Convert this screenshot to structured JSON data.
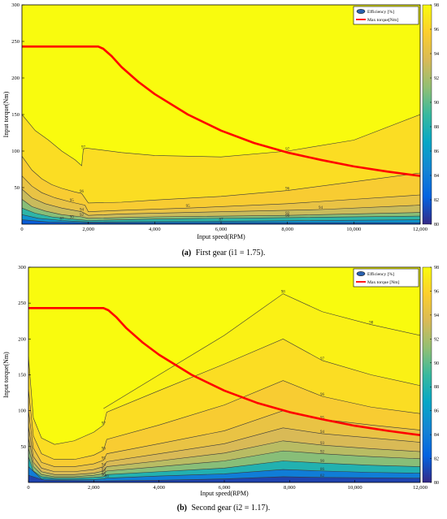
{
  "colorbar": {
    "stops": [
      "#352a87",
      "#0363e1",
      "#1485d4",
      "#06a7c6",
      "#38b99e",
      "#92bf73",
      "#d9ba56",
      "#fcce2e",
      "#f9fb0e"
    ],
    "ticks": [
      "80",
      "82",
      "84",
      "86",
      "88",
      "90",
      "92",
      "94",
      "96",
      "98"
    ]
  },
  "colors": {
    "max_torque": "#ff0000",
    "contour_line": "#3a3a3a"
  },
  "chart_data": [
    {
      "type": "contour",
      "panel_letter": "(a)",
      "caption": "First gear (i1 = 1.75).",
      "xlabel": "Input speed(RPM)",
      "ylabel": "Input torque(Nm)",
      "xlim": [
        0,
        12000
      ],
      "ylim": [
        0,
        300
      ],
      "x_ticks": [
        "0",
        "2,000",
        "4,000",
        "6,000",
        "8,000",
        "10,000",
        "12,000"
      ],
      "y_ticks": [
        "50",
        "100",
        "150",
        "200",
        "250",
        "300"
      ],
      "zlim": [
        80,
        98
      ],
      "legend": [
        "Efficiency [%]",
        "Max torque[Nm]"
      ],
      "legend_position": "top-right",
      "max_torque_curve": {
        "speed": [
          0,
          2000,
          2300,
          2450,
          2700,
          3000,
          3500,
          4000,
          5000,
          6000,
          7000,
          8000,
          9000,
          10000,
          11000,
          12000
        ],
        "torque": [
          243,
          243,
          243,
          240,
          230,
          215,
          195,
          178,
          150,
          128,
          111,
          98,
          88,
          79,
          72,
          66
        ]
      },
      "contours": [
        {
          "level": 97,
          "speed": [
            0,
            400,
            800,
            1200,
            1600,
            1800,
            1850,
            1950,
            2300,
            3000,
            4000,
            6000,
            8000,
            10000,
            12000
          ],
          "torque": [
            150,
            128,
            115,
            100,
            88,
            80,
            103,
            104,
            102,
            98,
            94,
            92,
            100,
            115,
            150
          ]
        },
        {
          "level": 96,
          "speed": [
            0,
            300,
            600,
            900,
            1200,
            1600,
            1800,
            2000,
            3000,
            4000,
            6000,
            8000,
            10000,
            12000
          ],
          "torque": [
            93,
            74,
            62,
            54,
            49,
            44,
            42,
            29,
            30,
            33,
            38,
            46,
            58,
            70
          ]
        },
        {
          "level": 95,
          "speed": [
            0,
            300,
            600,
            1000,
            1500,
            1900,
            2000,
            3000,
            5000,
            8000,
            12000
          ],
          "torque": [
            66,
            52,
            43,
            36,
            30,
            26,
            17,
            19,
            22,
            28,
            40
          ]
        },
        {
          "level": 94,
          "speed": [
            0,
            300,
            700,
            1200,
            1800,
            2000,
            3000,
            6000,
            9000,
            12000
          ],
          "torque": [
            48,
            36,
            28,
            22,
            17,
            12,
            14,
            17,
            20,
            26
          ]
        },
        {
          "level": 92,
          "speed": [
            0,
            300,
            700,
            1200,
            1800,
            2000,
            4000,
            8000,
            12000
          ],
          "torque": [
            34,
            24,
            18,
            13,
            10,
            8,
            10,
            12,
            16
          ]
        },
        {
          "level": 90,
          "speed": [
            0,
            400,
            900,
            1500,
            2000,
            4000,
            8000,
            12000
          ],
          "torque": [
            22,
            15,
            10,
            7,
            5,
            7,
            9,
            11
          ]
        },
        {
          "level": 87,
          "speed": [
            0,
            500,
            1200,
            2000,
            6000,
            12000
          ],
          "torque": [
            13,
            8,
            5,
            3,
            4,
            6
          ]
        },
        {
          "level": 84,
          "speed": [
            0,
            800,
            2000,
            6000,
            12000
          ],
          "torque": [
            6,
            3,
            2,
            2,
            2
          ]
        }
      ]
    },
    {
      "type": "contour",
      "panel_letter": "(b)",
      "caption": "Second gear (i2 = 1.17).",
      "xlabel": "Input speed(RPM)",
      "ylabel": "Input torque(Nm)",
      "xlim": [
        0,
        12000
      ],
      "ylim": [
        0,
        300
      ],
      "x_ticks": [
        "0",
        "2,000",
        "4,000",
        "6,000",
        "8,000",
        "10,000",
        "12,000"
      ],
      "y_ticks": [
        "50",
        "100",
        "150",
        "200",
        "250",
        "300"
      ],
      "zlim": [
        80,
        98
      ],
      "legend": [
        "Efficiency [%]",
        "Max torque [Nm]"
      ],
      "legend_position": "top-right",
      "max_torque_curve": {
        "speed": [
          0,
          2000,
          2300,
          2450,
          2700,
          3000,
          3500,
          4000,
          5000,
          6000,
          7000,
          8000,
          9000,
          10000,
          11000,
          12000
        ],
        "torque": [
          243,
          243,
          243,
          240,
          230,
          215,
          195,
          178,
          150,
          128,
          111,
          98,
          88,
          79,
          72,
          66
        ]
      },
      "contours": [
        {
          "level": 98,
          "speed": [
            2300,
            4000,
            6000,
            7800,
            9000,
            10500,
            12000
          ],
          "torque": [
            103,
            150,
            205,
            263,
            238,
            220,
            205
          ]
        },
        {
          "level": 97,
          "speed": [
            0,
            150,
            400,
            800,
            1400,
            2000,
            2300,
            2400,
            4000,
            6000,
            7800,
            9000,
            10500,
            12000
          ],
          "torque": [
            175,
            90,
            62,
            53,
            58,
            70,
            80,
            98,
            128,
            165,
            200,
            170,
            150,
            135
          ]
        },
        {
          "level": 96,
          "speed": [
            0,
            150,
            400,
            800,
            1400,
            2000,
            2300,
            2400,
            4000,
            6000,
            7800,
            9000,
            10500,
            12000
          ],
          "torque": [
            130,
            65,
            40,
            32,
            32,
            38,
            45,
            60,
            80,
            108,
            142,
            120,
            105,
            96
          ]
        },
        {
          "level": 95,
          "speed": [
            0,
            150,
            400,
            800,
            1400,
            2000,
            2300,
            2400,
            4000,
            6000,
            7800,
            9000,
            10500,
            12000
          ],
          "torque": [
            100,
            48,
            28,
            22,
            22,
            26,
            31,
            40,
            54,
            72,
            100,
            88,
            80,
            73
          ]
        },
        {
          "level": 94,
          "speed": [
            0,
            150,
            400,
            800,
            1400,
            2000,
            2300,
            2400,
            4000,
            6000,
            7800,
            9000,
            10500,
            12000
          ],
          "torque": [
            78,
            36,
            20,
            15,
            15,
            18,
            22,
            29,
            40,
            54,
            76,
            68,
            62,
            56
          ]
        },
        {
          "level": 93,
          "speed": [
            0,
            150,
            400,
            800,
            1400,
            2000,
            2300,
            2400,
            4000,
            6000,
            7800,
            9000,
            10500,
            12000
          ],
          "torque": [
            62,
            28,
            15,
            11,
            11,
            13,
            16,
            22,
            30,
            41,
            58,
            52,
            47,
            43
          ]
        },
        {
          "level": 92,
          "speed": [
            0,
            150,
            400,
            800,
            1400,
            2000,
            2300,
            2400,
            4000,
            6000,
            7800,
            9000,
            10500,
            12000
          ],
          "torque": [
            48,
            22,
            11,
            8,
            8,
            10,
            12,
            16,
            22,
            30,
            44,
            40,
            36,
            33
          ]
        },
        {
          "level": 90,
          "speed": [
            0,
            150,
            400,
            800,
            1400,
            2000,
            2300,
            2400,
            4000,
            6000,
            7800,
            9000,
            10500,
            12000
          ],
          "torque": [
            36,
            16,
            8,
            6,
            6,
            7,
            8,
            11,
            15,
            20,
            30,
            27,
            24,
            22
          ]
        },
        {
          "level": 86,
          "speed": [
            0,
            400,
            1000,
            2000,
            2300,
            2400,
            4000,
            6000,
            7800,
            9000,
            10500,
            12000
          ],
          "torque": [
            22,
            5,
            4,
            4,
            5,
            6,
            9,
            12,
            18,
            16,
            14,
            13
          ]
        },
        {
          "level": 82,
          "speed": [
            0,
            500,
            2000,
            4000,
            6000,
            7800,
            9000,
            12000
          ],
          "torque": [
            10,
            3,
            2,
            3,
            5,
            8,
            7,
            6
          ]
        }
      ]
    }
  ]
}
